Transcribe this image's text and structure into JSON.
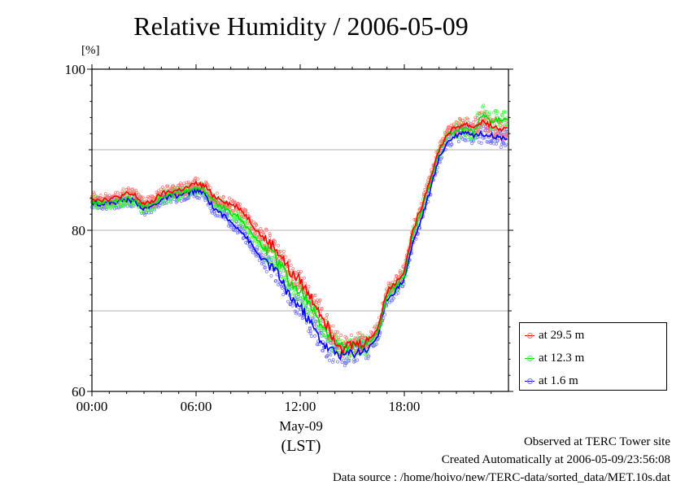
{
  "chart_data": {
    "type": "line",
    "title": "Relative Humidity / 2006-05-09",
    "ylabel": "[%]",
    "ylim": [
      60,
      100
    ],
    "yticks": [
      60,
      80,
      100
    ],
    "ygrid": [
      70,
      80,
      90
    ],
    "xlim": [
      0,
      24
    ],
    "xticks": [
      {
        "value": 0,
        "label": "00:00"
      },
      {
        "value": 6,
        "label": "06:00"
      },
      {
        "value": 12,
        "label": "12:00"
      },
      {
        "value": 18,
        "label": "18:00"
      }
    ],
    "x_sub_label": "May-09",
    "x_unit_label": "(LST)",
    "grid": true,
    "legend_position": "right-bottom",
    "x": [
      0,
      0.5,
      1,
      1.5,
      2,
      2.5,
      3,
      3.5,
      4,
      4.5,
      5,
      5.5,
      6,
      6.5,
      7,
      7.5,
      8,
      8.5,
      9,
      9.5,
      10,
      10.5,
      11,
      11.5,
      12,
      12.5,
      13,
      13.5,
      14,
      14.5,
      15,
      15.5,
      16,
      16.5,
      17,
      17.5,
      18,
      18.5,
      19,
      19.5,
      20,
      20.5,
      21,
      21.5,
      22,
      22.5,
      23,
      23.5
    ],
    "series": [
      {
        "name": "at 29.5 m",
        "color": "#ff0000",
        "scatter_color": "#ff7070",
        "values": [
          84.0,
          83.8,
          83.9,
          84.1,
          84.5,
          84.3,
          83.2,
          83.6,
          84.5,
          84.8,
          85.0,
          85.3,
          85.8,
          85.5,
          84.3,
          83.8,
          83.2,
          82.8,
          81.5,
          80.0,
          78.8,
          78.0,
          76.5,
          74.5,
          73.8,
          72.0,
          70.5,
          68.5,
          66.5,
          65.5,
          65.8,
          66.0,
          66.5,
          68.0,
          72.5,
          73.5,
          75.0,
          80.0,
          83.0,
          86.5,
          90.0,
          92.0,
          92.8,
          93.2,
          92.8,
          93.5,
          93.0,
          92.5
        ]
      },
      {
        "name": "at 12.3 m",
        "color": "#00e000",
        "scatter_color": "#40ff40",
        "values": [
          83.6,
          83.4,
          83.5,
          83.6,
          84.0,
          83.8,
          82.8,
          83.2,
          84.0,
          84.4,
          84.6,
          84.9,
          85.3,
          85.0,
          83.6,
          83.0,
          82.2,
          81.6,
          80.3,
          78.8,
          77.6,
          76.8,
          75.2,
          73.2,
          72.5,
          70.8,
          69.2,
          67.5,
          66.0,
          65.2,
          65.4,
          65.6,
          66.0,
          67.5,
          72.0,
          73.0,
          74.5,
          79.5,
          82.5,
          86.0,
          89.8,
          91.8,
          92.5,
          92.8,
          92.2,
          94.5,
          93.5,
          93.8
        ]
      },
      {
        "name": "at 1.6 m",
        "color": "#0000ff",
        "scatter_color": "#7070ff",
        "values": [
          83.5,
          83.3,
          83.4,
          83.5,
          83.8,
          83.6,
          82.6,
          83.0,
          83.8,
          84.2,
          84.3,
          84.6,
          84.9,
          84.5,
          82.8,
          82.0,
          81.0,
          80.2,
          78.8,
          77.2,
          76.0,
          75.2,
          73.5,
          71.5,
          70.5,
          68.8,
          67.0,
          65.5,
          64.8,
          64.5,
          64.8,
          65.0,
          65.5,
          67.0,
          71.5,
          72.5,
          74.0,
          78.5,
          81.5,
          85.0,
          89.0,
          91.0,
          91.8,
          92.3,
          91.8,
          92.0,
          91.8,
          91.5
        ]
      }
    ]
  },
  "footer": {
    "line1": "Observed at TERC Tower site",
    "line2": "Created Automatically at 2006-05-09/23:56:08",
    "line3": "Data source : /home/hoivo/new/TERC-data/sorted_data/MET.10s.dat"
  }
}
